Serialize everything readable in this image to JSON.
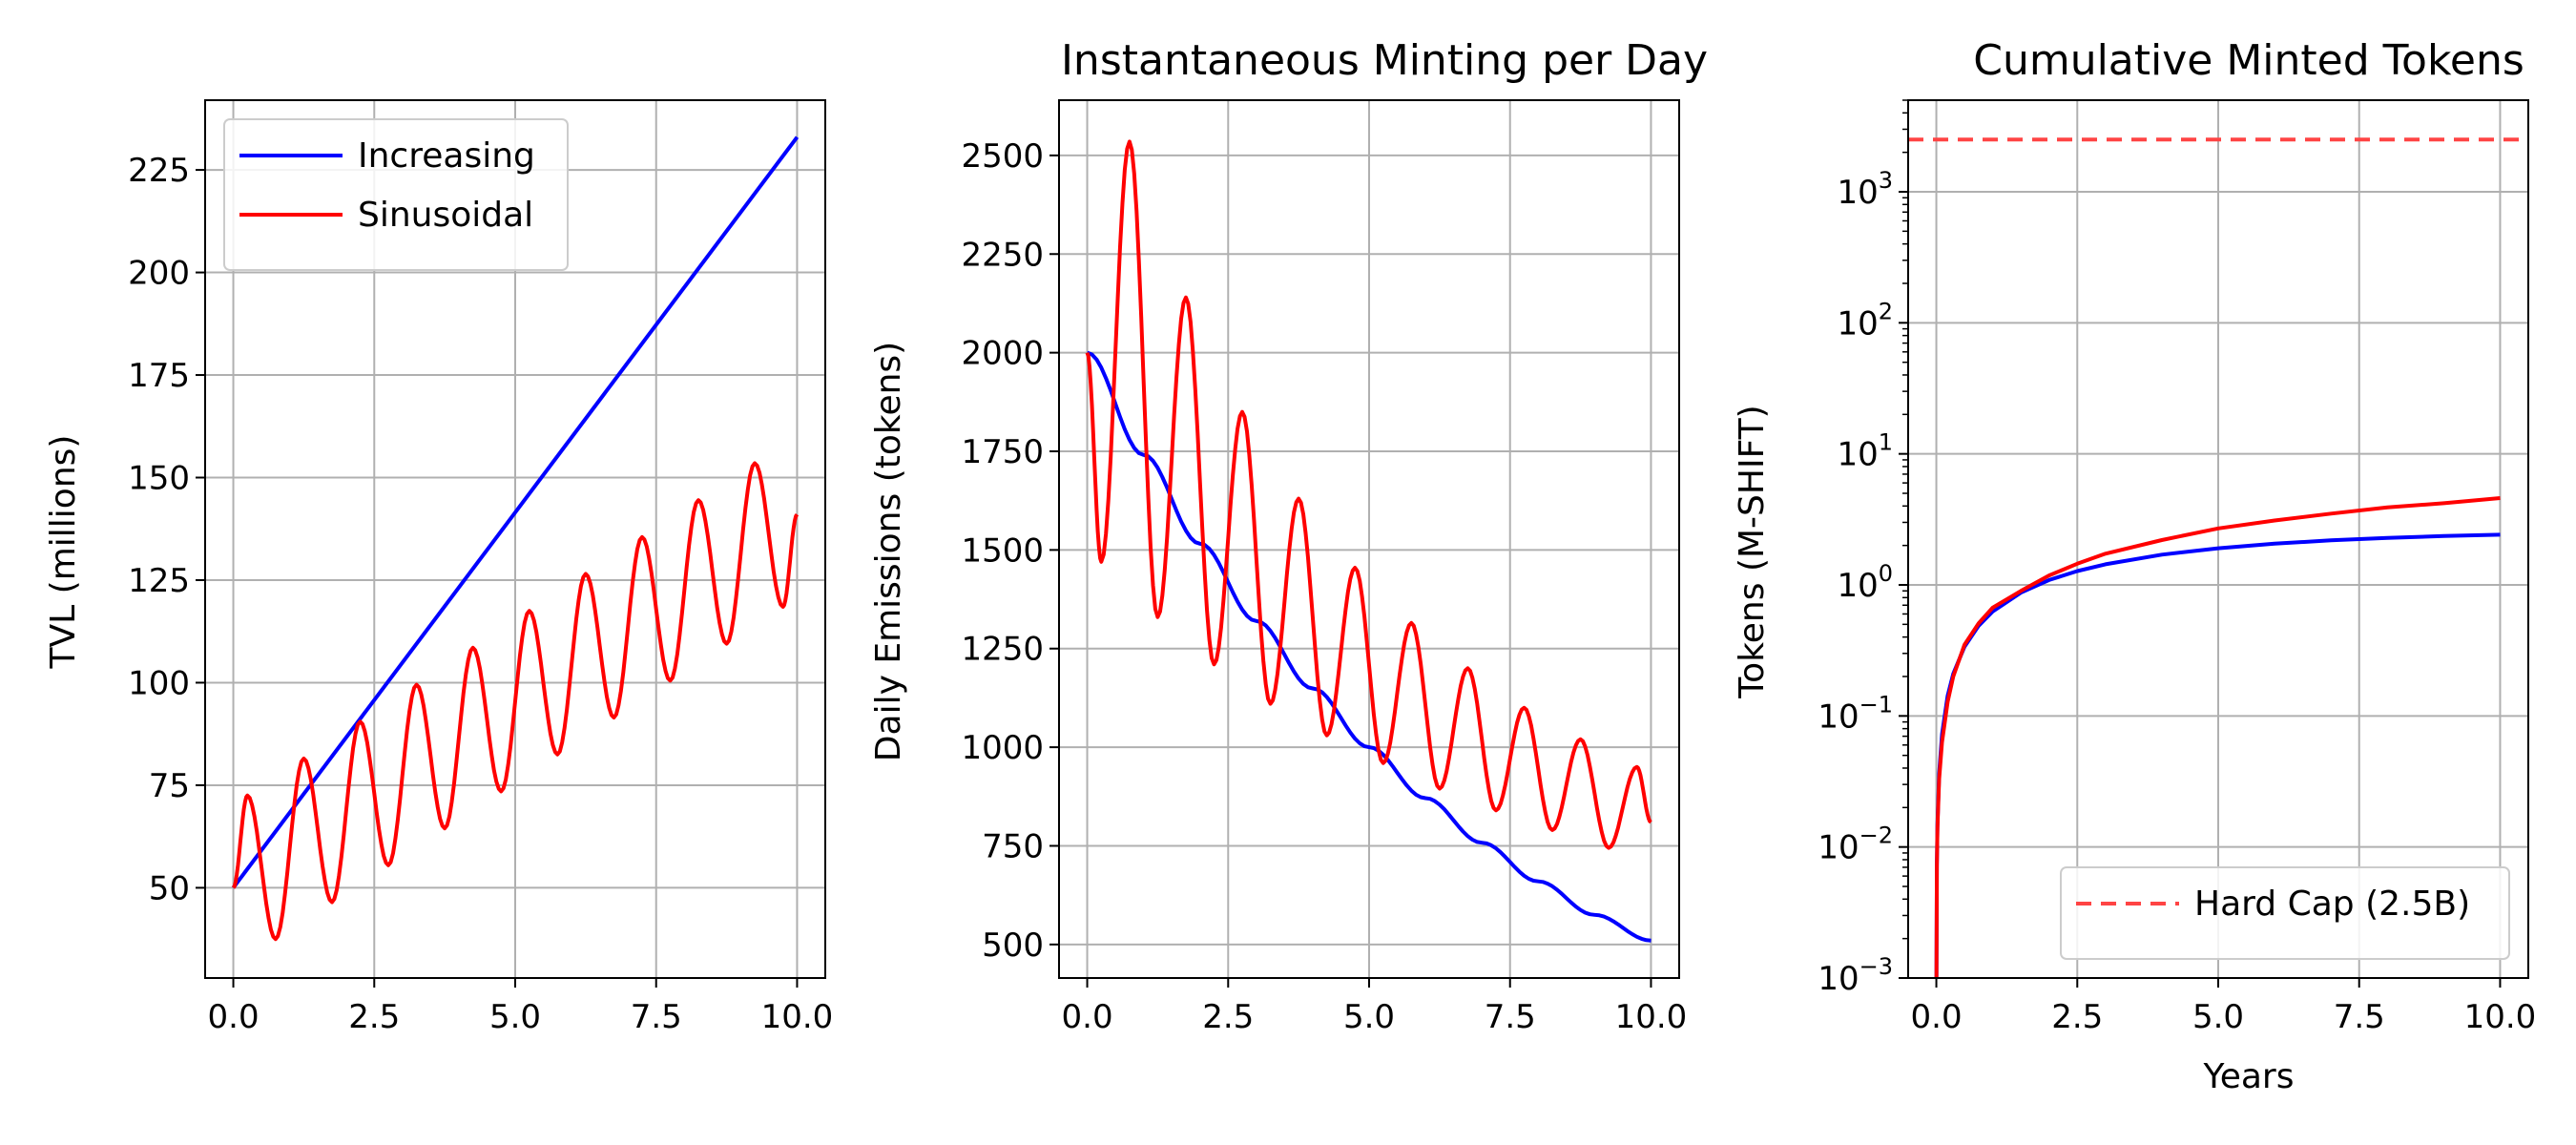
{
  "chart_data": [
    {
      "type": "line",
      "title": "",
      "xlabel": "",
      "ylabel": "TVL (millions)",
      "xlim": [
        -0.5,
        10.5
      ],
      "ylim": [
        28,
        242
      ],
      "xticks": [
        0,
        2.5,
        5,
        7.5,
        10
      ],
      "xtick_labels": [
        "0.0",
        "2.5",
        "5.0",
        "7.5",
        "10.0"
      ],
      "yticks": [
        50,
        75,
        100,
        125,
        150,
        175,
        200,
        225
      ],
      "ytick_labels": [
        "50",
        "75",
        "100",
        "125",
        "150",
        "175",
        "200",
        "225"
      ],
      "grid": true,
      "legend": "top-left",
      "series": [
        {
          "name": "Increasing",
          "color": "#0000ff",
          "x": [
            0,
            10
          ],
          "y": [
            50,
            233
          ]
        },
        {
          "name": "Sinusoidal",
          "color": "#ff0000",
          "x": [
            0,
            0.25,
            0.75,
            1.25,
            1.75,
            2.25,
            2.75,
            3.25,
            3.75,
            4.25,
            4.75,
            5.25,
            5.75,
            6.25,
            6.75,
            7.25,
            7.75,
            8.25,
            8.75,
            9.25,
            9.75,
            10
          ],
          "y": [
            50,
            72.5,
            37.5,
            81.5,
            46.5,
            90.5,
            55.5,
            99.5,
            64.5,
            108.5,
            73.5,
            117.5,
            82.5,
            126.5,
            91.5,
            135.5,
            100.5,
            144.5,
            109.5,
            153.5,
            118.5,
            141
          ]
        }
      ]
    },
    {
      "type": "line",
      "title": "Instantaneous Minting per Day",
      "xlabel": "",
      "ylabel": "Daily Emissions (tokens)",
      "xlim": [
        -0.5,
        10.5
      ],
      "ylim": [
        415,
        2640
      ],
      "xticks": [
        0,
        2.5,
        5,
        7.5,
        10
      ],
      "xtick_labels": [
        "0.0",
        "2.5",
        "5.0",
        "7.5",
        "10.0"
      ],
      "yticks": [
        500,
        750,
        1000,
        1250,
        1500,
        1750,
        2000,
        2250,
        2500
      ],
      "ytick_labels": [
        "500",
        "750",
        "1000",
        "1250",
        "1500",
        "1750",
        "2000",
        "2250",
        "2500"
      ],
      "grid": true,
      "series": [
        {
          "color": "#0000ff",
          "x": [
            0,
            1,
            2,
            3,
            4,
            5,
            6,
            7,
            8,
            9,
            10
          ],
          "y": [
            2000,
            1741,
            1516,
            1320,
            1149,
            1000,
            871,
            758,
            660,
            575,
            510
          ]
        },
        {
          "color": "#ff0000",
          "x": [
            0,
            0.25,
            0.75,
            1.25,
            1.75,
            2.25,
            2.75,
            3.25,
            3.75,
            4.25,
            4.75,
            5.25,
            5.75,
            6.25,
            6.75,
            7.25,
            7.75,
            8.25,
            8.75,
            9.25,
            9.75,
            10
          ],
          "y": [
            2000,
            1470,
            2535,
            1330,
            2140,
            1210,
            1850,
            1110,
            1630,
            1030,
            1455,
            960,
            1315,
            895,
            1200,
            840,
            1100,
            790,
            1020,
            745,
            950,
            810
          ]
        }
      ]
    },
    {
      "type": "line",
      "title": "Cumulative Minted Tokens",
      "xlabel": "Years",
      "ylabel": "Tokens (M-SHIFT)",
      "yscale": "log",
      "xlim": [
        -0.5,
        10.5
      ],
      "ylim": [
        0.001,
        5000
      ],
      "xticks": [
        0,
        2.5,
        5,
        7.5,
        10
      ],
      "xtick_labels": [
        "0.0",
        "2.5",
        "5.0",
        "7.5",
        "10.0"
      ],
      "yticks": [
        0.001,
        0.01,
        0.1,
        1,
        10,
        100,
        1000
      ],
      "ytick_exponents": [
        "-3",
        "-2",
        "-1",
        "0",
        "1",
        "2",
        "3"
      ],
      "ytick_base": "10",
      "grid": true,
      "legend": "bottom-right",
      "series": [
        {
          "color": "#0000ff",
          "x": [
            0.0,
            0.01,
            0.02,
            0.05,
            0.1,
            0.2,
            0.3,
            0.5,
            0.75,
            1,
            1.5,
            2,
            2.5,
            3,
            4,
            5,
            6,
            7,
            8,
            9,
            10
          ],
          "y": [
            0.0001,
            0.0073,
            0.0146,
            0.0364,
            0.0724,
            0.1424,
            0.2099,
            0.3382,
            0.4875,
            0.6259,
            0.8736,
            1.0885,
            1.2752,
            1.4374,
            1.7026,
            1.9042,
            2.0624,
            2.1861,
            2.2826,
            2.3578,
            2.4165
          ]
        },
        {
          "color": "#ff0000",
          "x": [
            0.0,
            0.01,
            0.02,
            0.05,
            0.1,
            0.2,
            0.3,
            0.5,
            0.75,
            1,
            1.5,
            2,
            2.5,
            3,
            4,
            5,
            6,
            7,
            8,
            9,
            10
          ],
          "y": [
            0.0001,
            0.0072,
            0.0139,
            0.033,
            0.063,
            0.128,
            0.2,
            0.35,
            0.51,
            0.67,
            0.9,
            1.18,
            1.45,
            1.73,
            2.2,
            2.7,
            3.1,
            3.5,
            3.9,
            4.2,
            4.6
          ]
        },
        {
          "name": "Hard Cap (2.5B)",
          "color": "#ff4444",
          "dashed": true,
          "x": [
            -0.5,
            10.5
          ],
          "y": [
            2500,
            2500
          ]
        }
      ]
    }
  ]
}
